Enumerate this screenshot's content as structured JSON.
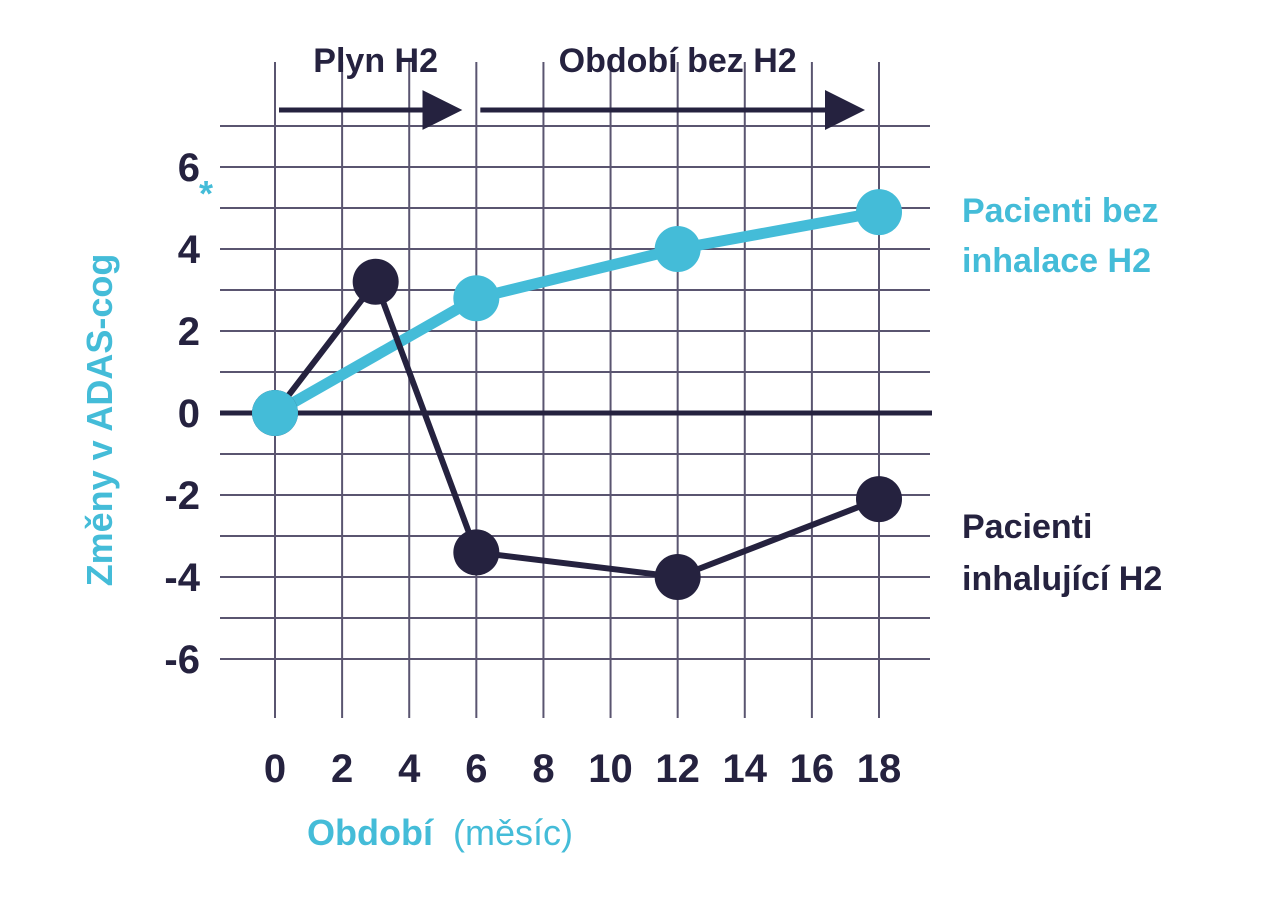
{
  "chart_data": {
    "type": "line",
    "xlabel": "Období",
    "xlabel_unit": "(měsíc)",
    "ylabel": "Změny v ADAS-cog",
    "x_ticks": [
      0,
      2,
      4,
      6,
      8,
      10,
      12,
      14,
      16,
      18
    ],
    "y_ticks": [
      6,
      4,
      2,
      0,
      -2,
      -4,
      -6
    ],
    "xlim": [
      0,
      18
    ],
    "ylim": [
      -7,
      7
    ],
    "grid": true,
    "annotation_star": "*",
    "phases": [
      {
        "label": "Plyn H2",
        "start": 0,
        "end": 6
      },
      {
        "label": "Období bez H2",
        "start": 6,
        "end": 18
      }
    ],
    "series": [
      {
        "name": "Pacienti bez inhalace H2",
        "name_lines": [
          "Pacienti bez",
          "inhalace H2"
        ],
        "color": "#44bcd8",
        "points": [
          {
            "x": 0,
            "y": 0
          },
          {
            "x": 6,
            "y": 2.8
          },
          {
            "x": 12,
            "y": 4.0
          },
          {
            "x": 18,
            "y": 4.9
          }
        ]
      },
      {
        "name": "Pacienti inhalující H2",
        "name_lines": [
          "Pacienti",
          "inhalující H2"
        ],
        "color": "#25223f",
        "points": [
          {
            "x": 0,
            "y": 0
          },
          {
            "x": 3,
            "y": 3.2
          },
          {
            "x": 6,
            "y": -3.4
          },
          {
            "x": 12,
            "y": -4.0
          },
          {
            "x": 18,
            "y": -2.1
          }
        ]
      }
    ]
  }
}
